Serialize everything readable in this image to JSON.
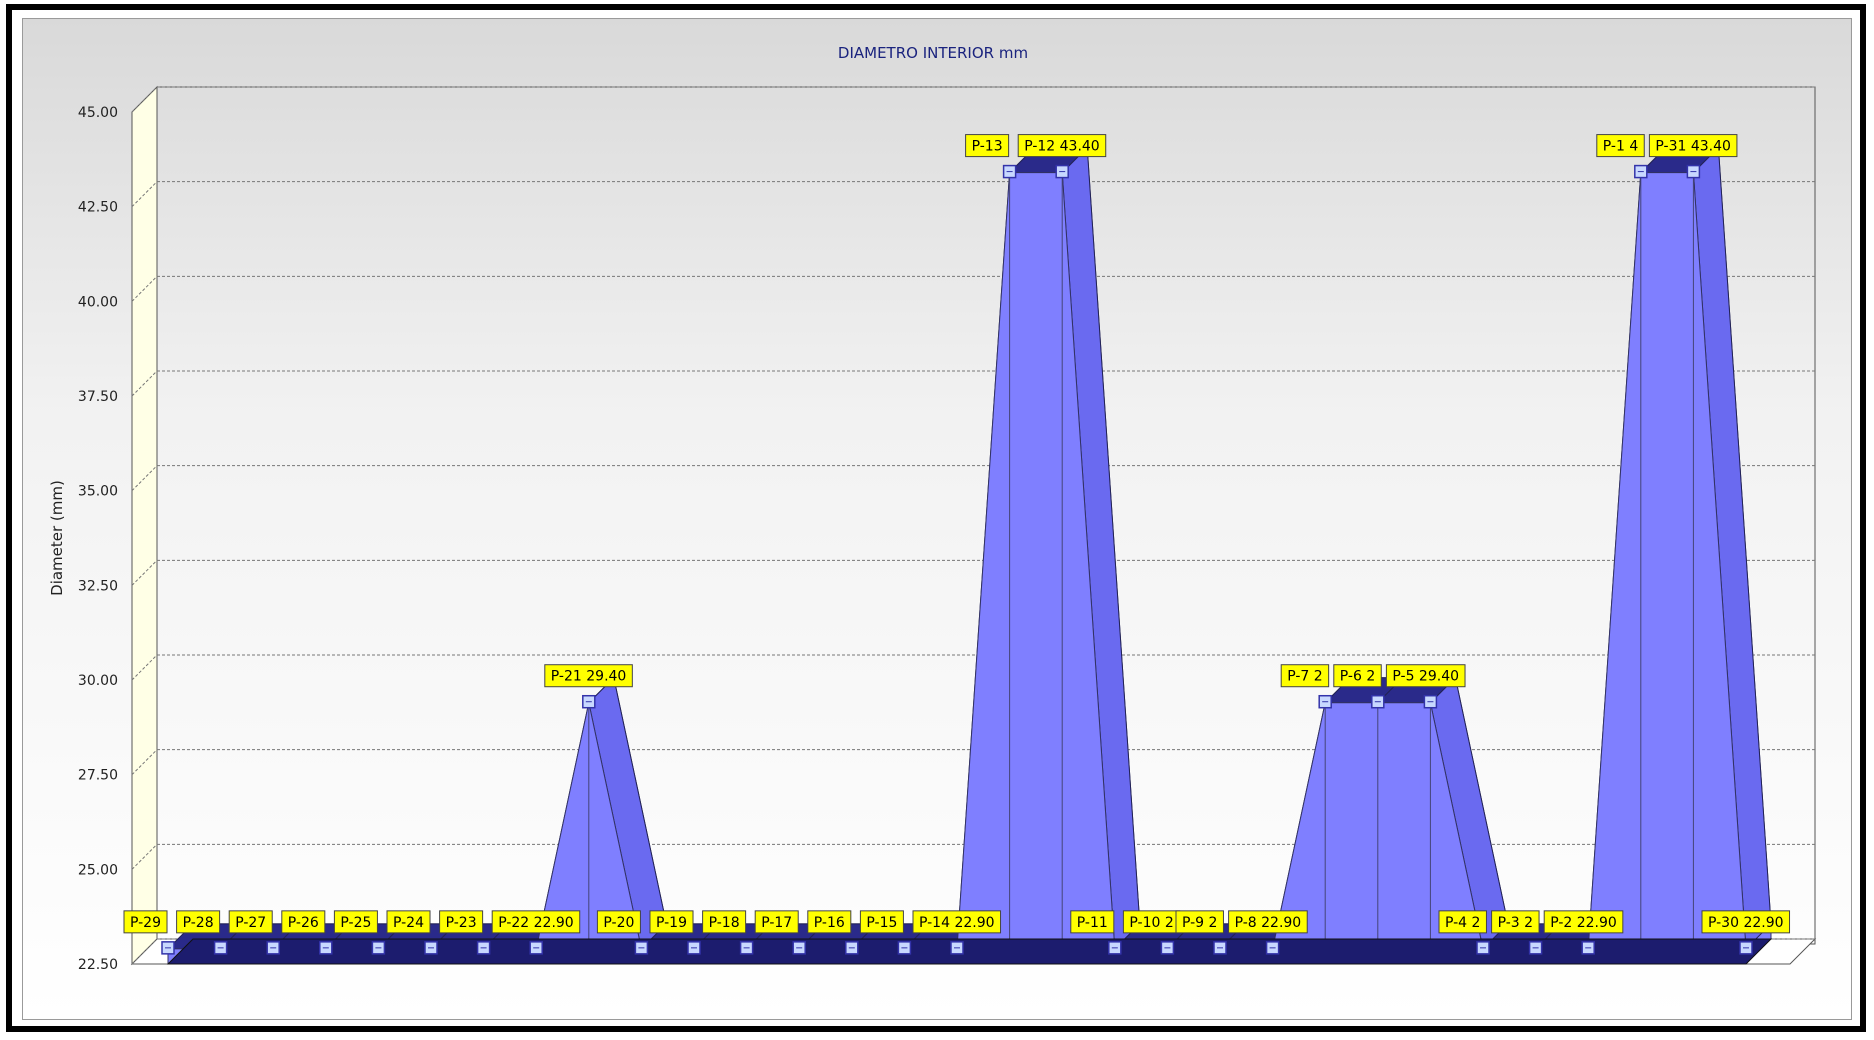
{
  "chart_data": {
    "type": "area",
    "title": "DIAMETRO INTERIOR mm",
    "ylabel": "Diameter (mm)",
    "xlabel": "",
    "ylim": [
      22.5,
      45.0
    ],
    "yticks": [
      "22.50",
      "25.00",
      "27.50",
      "30.00",
      "32.50",
      "35.00",
      "37.50",
      "40.00",
      "42.50",
      "45.00"
    ],
    "grid": true,
    "categories": [
      "P-29",
      "P-28",
      "P-27",
      "P-26",
      "P-25",
      "P-24",
      "P-23",
      "P-22",
      "P-21",
      "P-20",
      "P-19",
      "P-18",
      "P-17",
      "P-16",
      "P-15",
      "P-14",
      "P-13",
      "P-12",
      "P-11",
      "P-10",
      "P-9",
      "P-8",
      "P-7",
      "P-6",
      "P-5",
      "P-4",
      "P-3",
      "P-2",
      "P-1",
      "P-31",
      "P-30"
    ],
    "values": [
      22.9,
      22.9,
      22.9,
      22.9,
      22.9,
      22.9,
      22.9,
      22.9,
      29.4,
      22.9,
      22.9,
      22.9,
      22.9,
      22.9,
      22.9,
      22.9,
      43.4,
      43.4,
      22.9,
      22.9,
      22.9,
      22.9,
      29.4,
      29.4,
      29.4,
      22.9,
      22.9,
      22.9,
      43.4,
      43.4,
      22.9
    ],
    "point_labels": [
      "P-29",
      "P-28",
      "P-27",
      "P-26",
      "P-25",
      "P-24",
      "P-23",
      "P-22 22.90",
      "P-21 29.40",
      "P-20",
      "P-19",
      "P-18",
      "P-17",
      "P-16",
      "P-15",
      "P-14 22.90",
      "P-13",
      "P-12 43.40",
      "P-11",
      "P-10 2",
      "P-9 2",
      "P-8 22.90",
      "P-7 2",
      "P-6 2",
      "P-5 29.40",
      "P-4 2",
      "P-3 2",
      "P-2 22.90",
      "P-1 4",
      "P-31 43.40",
      "P-30 22.90"
    ],
    "colors": {
      "fill": "#7f7fff",
      "side": "#2a2a8a",
      "label_bg": "#ffff00",
      "marker": "#3333aa"
    }
  }
}
